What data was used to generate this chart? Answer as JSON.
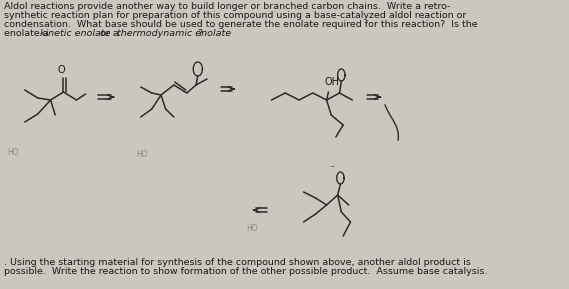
{
  "bg_color": "#cac7bf",
  "text_color": "#1a1a1a",
  "struct_color": "#2a2a2a",
  "line1": "Aldol reactions provide another way to build longer or branched carbon chains.  Write a retro-",
  "line2": "synthetic reaction plan for preparation of this compound using a base-catalyzed aldol reaction or",
  "line3": "condensation.  What base should be used to generate the enolate required for this reaction?  Is the",
  "line4a": "enolate a ",
  "line4b": "kinetic enolate",
  "line4c": " or a ",
  "line4d": "thermodynamic enolate",
  "line4e": "?",
  "bottom1": ". Using the starting material for synthesis of the compound shown above, another aldol product is",
  "bottom2": "possible.  Write the reaction to show formation of the other possible product.  Assume base catalysis.",
  "font_size": 6.8,
  "lw": 1.1
}
